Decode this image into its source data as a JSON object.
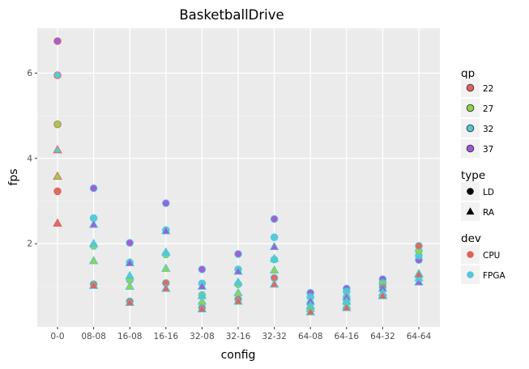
{
  "chart_data": {
    "type": "scatter",
    "title": "BasketballDrive",
    "xlabel": "config",
    "ylabel": "fps",
    "categories": [
      "0-0",
      "08-08",
      "16-08",
      "16-16",
      "32-08",
      "32-16",
      "32-32",
      "64-08",
      "64-16",
      "64-32",
      "64-64"
    ],
    "ylim": [
      0.05,
      7.05
    ],
    "yticks": [
      2,
      4,
      6
    ],
    "grid": true,
    "legend_position": "right",
    "legends": {
      "qp": {
        "title": "qp",
        "entries": [
          {
            "label": "22",
            "color": "#e0625a"
          },
          {
            "label": "27",
            "color": "#8ed14a"
          },
          {
            "label": "32",
            "color": "#4fc8d8"
          },
          {
            "label": "37",
            "color": "#9b59d6"
          }
        ]
      },
      "type": {
        "title": "type",
        "entries": [
          {
            "label": "LD",
            "shape": "circle"
          },
          {
            "label": "RA",
            "shape": "triangle"
          }
        ]
      },
      "dev": {
        "title": "dev",
        "entries": [
          {
            "label": "CPU",
            "color": "#e0625a"
          },
          {
            "label": "FPGA",
            "color": "#4fc8d8"
          }
        ]
      }
    },
    "colors": {
      "qp22": "#e0625a",
      "qp27": "#8ed14a",
      "qp32": "#4fc8d8",
      "qp37": "#9b59d6",
      "CPU": "#e0625a",
      "FPGA": "#4fc8d8"
    },
    "series": [
      {
        "qp": "37",
        "type": "LD",
        "dev": "CPU",
        "x": [
          "0-0"
        ],
        "values": [
          6.75
        ]
      },
      {
        "qp": "32",
        "type": "LD",
        "dev": "CPU",
        "x": [
          "0-0"
        ],
        "values": [
          5.95
        ]
      },
      {
        "qp": "27",
        "type": "LD",
        "dev": "CPU",
        "x": [
          "0-0"
        ],
        "values": [
          4.8
        ]
      },
      {
        "qp": "22",
        "type": "LD",
        "dev": "CPU",
        "x": [
          "0-0"
        ],
        "values": [
          3.23
        ]
      },
      {
        "qp": "32",
        "type": "RA",
        "dev": "CPU",
        "x": [
          "0-0"
        ],
        "values": [
          4.2
        ]
      },
      {
        "qp": "27",
        "type": "RA",
        "dev": "CPU",
        "x": [
          "0-0"
        ],
        "values": [
          3.58
        ]
      },
      {
        "qp": "22",
        "type": "RA",
        "dev": "CPU",
        "x": [
          "0-0"
        ],
        "values": [
          2.48
        ]
      },
      {
        "qp": "37",
        "type": "LD",
        "dev": "FPGA",
        "x": [
          "08-08",
          "16-08",
          "16-16",
          "32-08",
          "32-16",
          "32-32",
          "64-08",
          "64-16",
          "64-32",
          "64-64"
        ],
        "values": [
          3.3,
          2.02,
          2.95,
          1.4,
          1.76,
          2.58,
          0.85,
          0.95,
          1.17,
          1.62
        ]
      },
      {
        "qp": "32",
        "type": "LD",
        "dev": "FPGA",
        "x": [
          "08-08",
          "16-08",
          "16-16",
          "32-08",
          "32-16",
          "32-32",
          "64-08",
          "64-16",
          "64-32",
          "64-64"
        ],
        "values": [
          2.6,
          1.56,
          2.32,
          1.07,
          1.4,
          2.15,
          0.75,
          0.88,
          1.08,
          1.72
        ]
      },
      {
        "qp": "27",
        "type": "LD",
        "dev": "FPGA",
        "x": [
          "08-08",
          "16-08",
          "16-16",
          "32-08",
          "32-16",
          "32-32",
          "64-08",
          "64-16",
          "64-32",
          "64-64"
        ],
        "values": [
          1.95,
          1.15,
          1.75,
          0.8,
          1.05,
          1.63,
          0.6,
          0.75,
          1.05,
          1.83
        ]
      },
      {
        "qp": "22",
        "type": "LD",
        "dev": "FPGA",
        "x": [
          "08-08",
          "16-08",
          "16-16",
          "32-08",
          "32-16",
          "32-32",
          "64-08",
          "64-16",
          "64-32",
          "64-64"
        ],
        "values": [
          1.05,
          0.65,
          1.08,
          0.5,
          0.7,
          1.2,
          0.45,
          0.62,
          0.98,
          1.95
        ]
      },
      {
        "qp": "37",
        "type": "RA",
        "dev": "FPGA",
        "x": [
          "08-08",
          "16-08",
          "16-16",
          "32-08",
          "32-16",
          "32-32",
          "64-08",
          "64-16",
          "64-32",
          "64-64"
        ],
        "values": [
          2.45,
          1.55,
          2.3,
          1.0,
          1.35,
          1.93,
          0.65,
          0.75,
          0.95,
          1.1
        ]
      },
      {
        "qp": "32",
        "type": "RA",
        "dev": "FPGA",
        "x": [
          "08-08",
          "16-08",
          "16-16",
          "32-08",
          "32-16",
          "32-32",
          "64-08",
          "64-16",
          "64-32",
          "64-64"
        ],
        "values": [
          2.0,
          1.25,
          1.8,
          0.78,
          1.1,
          1.65,
          0.55,
          0.65,
          0.85,
          1.2
        ]
      },
      {
        "qp": "27",
        "type": "RA",
        "dev": "FPGA",
        "x": [
          "08-08",
          "16-08",
          "16-16",
          "32-08",
          "32-16",
          "32-32",
          "64-08",
          "64-16",
          "64-32",
          "64-64"
        ],
        "values": [
          1.6,
          1.0,
          1.42,
          0.65,
          0.85,
          1.38,
          0.48,
          0.55,
          0.8,
          1.3
        ]
      },
      {
        "qp": "22",
        "type": "RA",
        "dev": "FPGA",
        "x": [
          "08-08",
          "16-08",
          "16-16",
          "32-08",
          "32-16",
          "32-32",
          "64-08",
          "64-16",
          "64-32",
          "64-64"
        ],
        "values": [
          1.02,
          0.62,
          0.95,
          0.47,
          0.65,
          1.05,
          0.4,
          0.5,
          0.78,
          1.28
        ]
      }
    ]
  }
}
